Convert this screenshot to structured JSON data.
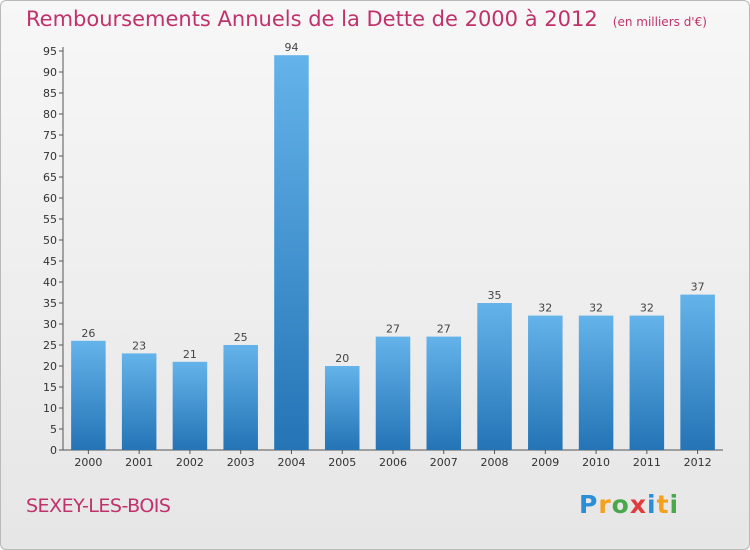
{
  "title": "Remboursements Annuels de la Dette de 2000 à 2012",
  "unit_note": "(en milliers d'€)",
  "commune": "SEXEY-LES-BOIS",
  "logo": {
    "letters": [
      "P",
      "r",
      "o",
      "x",
      "i",
      "t",
      "i"
    ],
    "colors": [
      "#2b8fd8",
      "#f4a11d",
      "#4aa84a",
      "#e23b3b",
      "#2b8fd8",
      "#f4a11d",
      "#4aa84a"
    ]
  },
  "colors": {
    "bar_top": "#64b3ea",
    "bar_bottom": "#2474b6",
    "title": "#c0326b"
  },
  "chart_data": {
    "type": "bar",
    "categories": [
      "2000",
      "2001",
      "2002",
      "2003",
      "2004",
      "2005",
      "2006",
      "2007",
      "2008",
      "2009",
      "2010",
      "2011",
      "2012"
    ],
    "values": [
      26,
      23,
      21,
      25,
      94,
      20,
      27,
      27,
      35,
      32,
      32,
      32,
      37
    ],
    "ylim": [
      0,
      95
    ],
    "yticks": [
      0,
      5,
      10,
      15,
      20,
      25,
      30,
      35,
      40,
      45,
      50,
      55,
      60,
      65,
      70,
      75,
      80,
      85,
      90,
      95
    ],
    "grid": false,
    "data_labels": true
  }
}
